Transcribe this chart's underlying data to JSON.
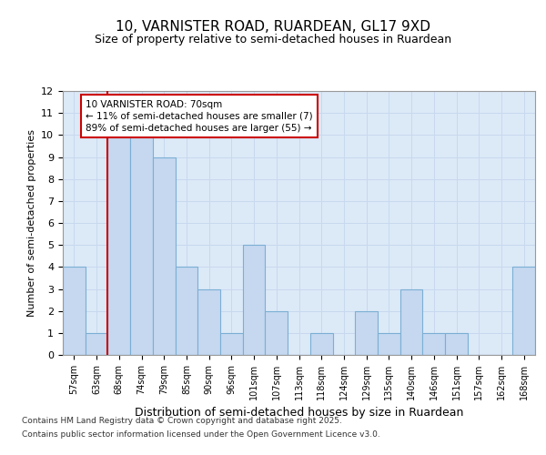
{
  "title1": "10, VARNISTER ROAD, RUARDEAN, GL17 9XD",
  "title2": "Size of property relative to semi-detached houses in Ruardean",
  "xlabel": "Distribution of semi-detached houses by size in Ruardean",
  "ylabel": "Number of semi-detached properties",
  "categories": [
    "57sqm",
    "63sqm",
    "68sqm",
    "74sqm",
    "79sqm",
    "85sqm",
    "90sqm",
    "96sqm",
    "101sqm",
    "107sqm",
    "113sqm",
    "118sqm",
    "124sqm",
    "129sqm",
    "135sqm",
    "140sqm",
    "146sqm",
    "151sqm",
    "157sqm",
    "162sqm",
    "168sqm"
  ],
  "values": [
    4,
    1,
    10,
    10,
    9,
    4,
    3,
    1,
    5,
    2,
    0,
    1,
    0,
    2,
    1,
    3,
    1,
    1,
    0,
    0,
    4
  ],
  "bar_color": "#c5d8f0",
  "bar_edge_color": "#7bafd4",
  "subject_line_index": 2,
  "subject_label": "10 VARNISTER ROAD: 70sqm",
  "annotation_line1": "← 11% of semi-detached houses are smaller (7)",
  "annotation_line2": "89% of semi-detached houses are larger (55) →",
  "annotation_box_facecolor": "#ffffff",
  "annotation_box_edgecolor": "#cc0000",
  "subject_line_color": "#cc0000",
  "ylim": [
    0,
    12
  ],
  "yticks": [
    0,
    1,
    2,
    3,
    4,
    5,
    6,
    7,
    8,
    9,
    10,
    11,
    12
  ],
  "grid_color": "#c8d8ee",
  "bg_color": "#dce9f7",
  "footer1": "Contains HM Land Registry data © Crown copyright and database right 2025.",
  "footer2": "Contains public sector information licensed under the Open Government Licence v3.0."
}
